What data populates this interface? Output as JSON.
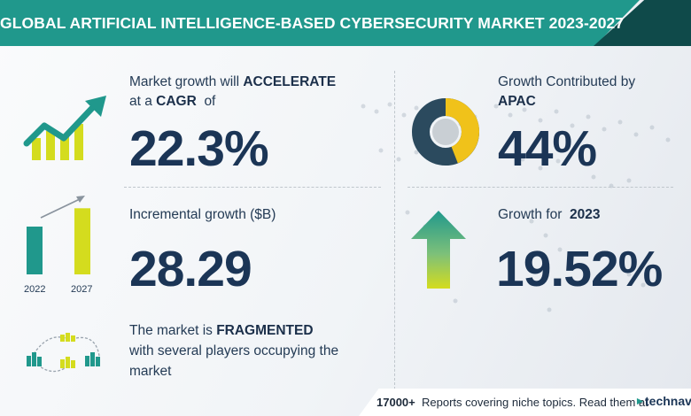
{
  "header": {
    "title": "GLOBAL ARTIFICIAL INTELLIGENCE-BASED CYBERSECURITY MARKET 2023-2027"
  },
  "colors": {
    "teal": "#20988c",
    "dark_navy": "#1b3556",
    "yellow": "#d4dc1e",
    "dark_teal": "#0f4a4a"
  },
  "cagr": {
    "line1_prefix": "Market growth will",
    "line1_bold": "ACCELERATE",
    "line2_prefix": "at a",
    "line2_bold": "CAGR",
    "line2_suffix": "of",
    "value": "22.3%",
    "icon": "growth-chart-icon"
  },
  "incremental": {
    "label": "Incremental growth ($B)",
    "value": "28.29",
    "bars": [
      {
        "label": "2022",
        "level": 0.6
      },
      {
        "label": "2027",
        "level": 0.83
      }
    ],
    "icon": "bar-comparison-icon"
  },
  "fragmented": {
    "line1_prefix": "The market is",
    "line1_bold": "FRAGMENTED",
    "line2": "with several players occupying the",
    "line3": "market",
    "icon": "network-buildings-icon"
  },
  "apac": {
    "line1": "Growth Contributed by",
    "line2_bold": "APAC",
    "value": "44%",
    "share": 0.44,
    "icon": "donut-chart-icon"
  },
  "growth_2023": {
    "label_prefix": "Growth for",
    "label_bold": "2023",
    "value": "19.52%",
    "icon": "up-arrow-icon"
  },
  "footer": {
    "count": "17000+",
    "text": "Reports covering niche topics. Read them at",
    "brand": "technav"
  }
}
